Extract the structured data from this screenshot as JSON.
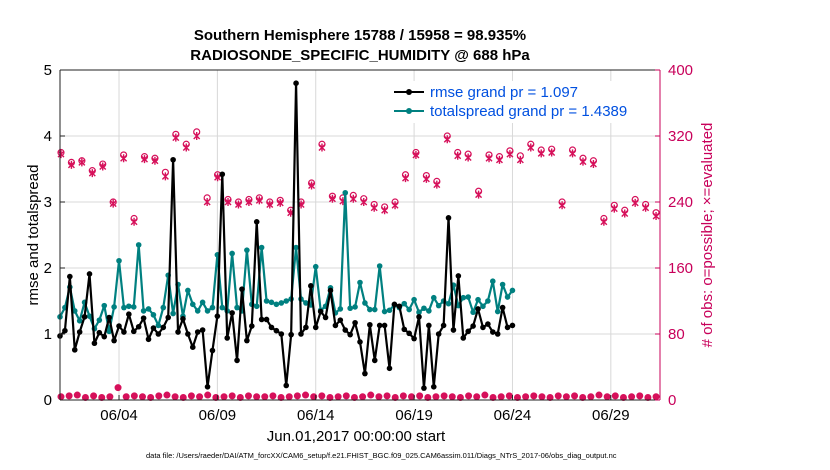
{
  "chart_data": {
    "type": "line",
    "title_line1": "Southern Hemisphere 15788 / 15958 = 98.935%",
    "title_line2": "RADIOSONDE_SPECIFIC_HUMIDITY @ 688 hPa",
    "xlabel": "Jun.01,2017 00:00:00 start",
    "ylabel_left": "rmse and totalspread",
    "ylabel_right": "# of obs: o=possible; ×=evaluated",
    "footnote": "data file: /Users/raeder/DAI/ATM_forcXX/CAM6_setup/f.e21.FHIST_BGC.f09_025.CAM6assim.011/Diags_NTrS_2017-06/obs_diag_output.nc",
    "xlim": [
      1.0,
      31.5
    ],
    "ylim_left": [
      0,
      5
    ],
    "ylim_right": [
      0,
      400
    ],
    "x_ticks": [
      4,
      9,
      14,
      19,
      24,
      29
    ],
    "x_tick_labels": [
      "06/04",
      "06/09",
      "06/14",
      "06/19",
      "06/24",
      "06/29"
    ],
    "y_left_ticks": [
      "0",
      "1",
      "2",
      "3",
      "4",
      "5"
    ],
    "y_right_ticks": [
      "0",
      "80",
      "160",
      "240",
      "320",
      "400"
    ],
    "legend": [
      {
        "name": "rmse grand pr = 1.097",
        "color": "#000000"
      },
      {
        "name": "totalspread grand pr = 1.4389",
        "color": "#008080"
      }
    ],
    "colors": {
      "rmse": "#000000",
      "spread": "#008080",
      "obs": "#d6105a",
      "legend_text": "#0050e0",
      "right_axis": "#c8005a"
    },
    "x_start": 1.0,
    "x_step": 0.25,
    "series": [
      {
        "name": "rmse",
        "values": [
          0.97,
          1.05,
          1.87,
          0.76,
          1.03,
          1.26,
          1.91,
          0.86,
          1.02,
          0.96,
          1.25,
          0.9,
          1.12,
          1.03,
          1.3,
          1.04,
          1.11,
          1.24,
          0.92,
          1.09,
          1.0,
          1.1,
          1.25,
          3.64,
          1.03,
          1.23,
          1.0,
          0.8,
          1.03,
          1.06,
          0.2,
          0.75,
          1.27,
          3.42,
          0.94,
          1.32,
          0.6,
          1.68,
          0.9,
          1.12,
          2.7,
          1.22,
          1.22,
          1.1,
          1.05,
          1.0,
          0.22,
          0.99,
          4.8,
          1.0,
          1.1,
          1.73,
          1.1,
          1.34,
          1.25,
          1.66,
          1.13,
          1.21,
          1.06,
          0.99,
          1.17,
          0.88,
          0.4,
          1.14,
          0.6,
          1.13,
          1.13,
          0.48,
          1.45,
          1.42,
          1.07,
          1.01,
          0.93,
          1.26,
          0.18,
          1.13,
          0.2,
          1.0,
          1.13,
          2.76,
          1.06,
          1.88,
          0.94,
          1.04,
          1.12,
          1.38,
          1.1,
          1.15,
          1.03,
          1.0,
          1.4,
          1.1,
          1.13
        ]
      },
      {
        "name": "totalspread",
        "values": [
          1.26,
          1.4,
          1.71,
          1.35,
          1.2,
          1.48,
          1.27,
          1.08,
          1.21,
          1.43,
          1.04,
          1.41,
          2.11,
          1.4,
          1.42,
          1.41,
          2.35,
          1.35,
          1.38,
          1.29,
          1.13,
          1.4,
          1.89,
          1.31,
          1.75,
          1.27,
          1.66,
          1.45,
          1.35,
          1.48,
          1.35,
          1.4,
          2.2,
          1.4,
          1.35,
          2.22,
          1.4,
          1.35,
          2.27,
          1.45,
          1.42,
          2.31,
          1.5,
          1.48,
          1.45,
          1.47,
          1.5,
          1.53,
          2.31,
          1.53,
          1.47,
          1.44,
          2.02,
          1.36,
          1.42,
          1.7,
          1.32,
          1.38,
          3.14,
          1.39,
          1.41,
          1.78,
          1.47,
          1.37,
          1.37,
          2.03,
          1.34,
          1.36,
          1.44,
          1.4,
          1.46,
          1.37,
          1.52,
          1.33,
          1.39,
          1.35,
          1.55,
          1.43,
          1.5,
          1.46,
          1.74,
          1.43,
          1.55,
          1.56,
          1.33,
          1.52,
          1.42,
          1.5,
          1.8,
          1.34,
          1.75,
          1.56,
          1.66
        ]
      },
      {
        "name": "obs_possible",
        "values": [
          300,
          288,
          290,
          278,
          286,
          240,
          297,
          220,
          295,
          293,
          276,
          322,
          310,
          325,
          245,
          273,
          243,
          240,
          243,
          245,
          240,
          242,
          230,
          240,
          263,
          310,
          247,
          245,
          248,
          244,
          237,
          234,
          240,
          273,
          300,
          272,
          265,
          320,
          300,
          298,
          253,
          297,
          295,
          302,
          296,
          310,
          303,
          304,
          240,
          303,
          293,
          290,
          220,
          236,
          230,
          243,
          237,
          227
        ]
      },
      {
        "name": "obs_evaluated",
        "values": [
          298,
          285,
          288,
          275,
          283,
          238,
          293,
          216,
          292,
          290,
          271,
          318,
          306,
          320,
          240,
          270,
          240,
          237,
          240,
          242,
          237,
          239,
          227,
          237,
          260,
          306,
          244,
          241,
          244,
          240,
          233,
          230,
          236,
          269,
          297,
          268,
          261,
          316,
          296,
          294,
          249,
          293,
          291,
          298,
          291,
          306,
          299,
          300,
          236,
          299,
          289,
          286,
          216,
          232,
          226,
          239,
          233,
          223
        ]
      },
      {
        "name": "obs_unassimilated",
        "values": [
          4,
          5,
          6,
          3,
          5,
          3,
          4,
          15,
          4,
          5,
          4,
          3,
          5,
          6,
          4,
          3,
          5,
          4,
          6,
          3,
          4,
          5,
          3,
          5,
          4,
          4,
          5,
          3,
          4,
          5,
          6,
          4,
          5,
          3,
          4,
          5,
          3,
          4,
          6,
          4,
          5,
          3,
          5,
          4,
          5,
          3,
          4,
          5,
          4,
          3,
          5,
          4,
          6,
          3,
          4,
          5,
          3,
          4,
          5,
          4,
          3,
          5,
          4,
          5,
          3,
          4,
          6,
          4,
          5,
          3,
          4,
          5,
          3,
          4
        ]
      }
    ]
  }
}
